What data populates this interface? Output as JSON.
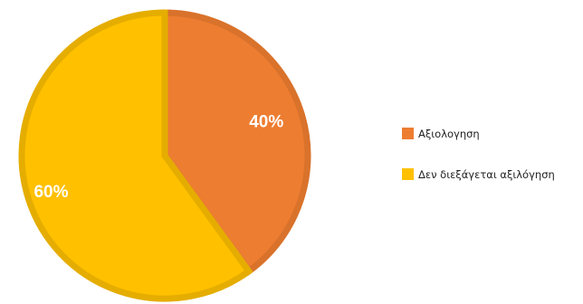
{
  "chart_data": {
    "type": "pie",
    "title": "",
    "slices": [
      {
        "name": "Αξιολογηση",
        "value": 40,
        "label": "40%",
        "color": "#ED7D31",
        "border_color": "#D9722B"
      },
      {
        "name": "Δεν διεξάγεται αξιλόγηση",
        "value": 60,
        "label": "60%",
        "color": "#FFC000",
        "border_color": "#E5AD00"
      }
    ],
    "start_angle": "12 o'clock",
    "direction": "clockwise",
    "legend_position": "right"
  }
}
